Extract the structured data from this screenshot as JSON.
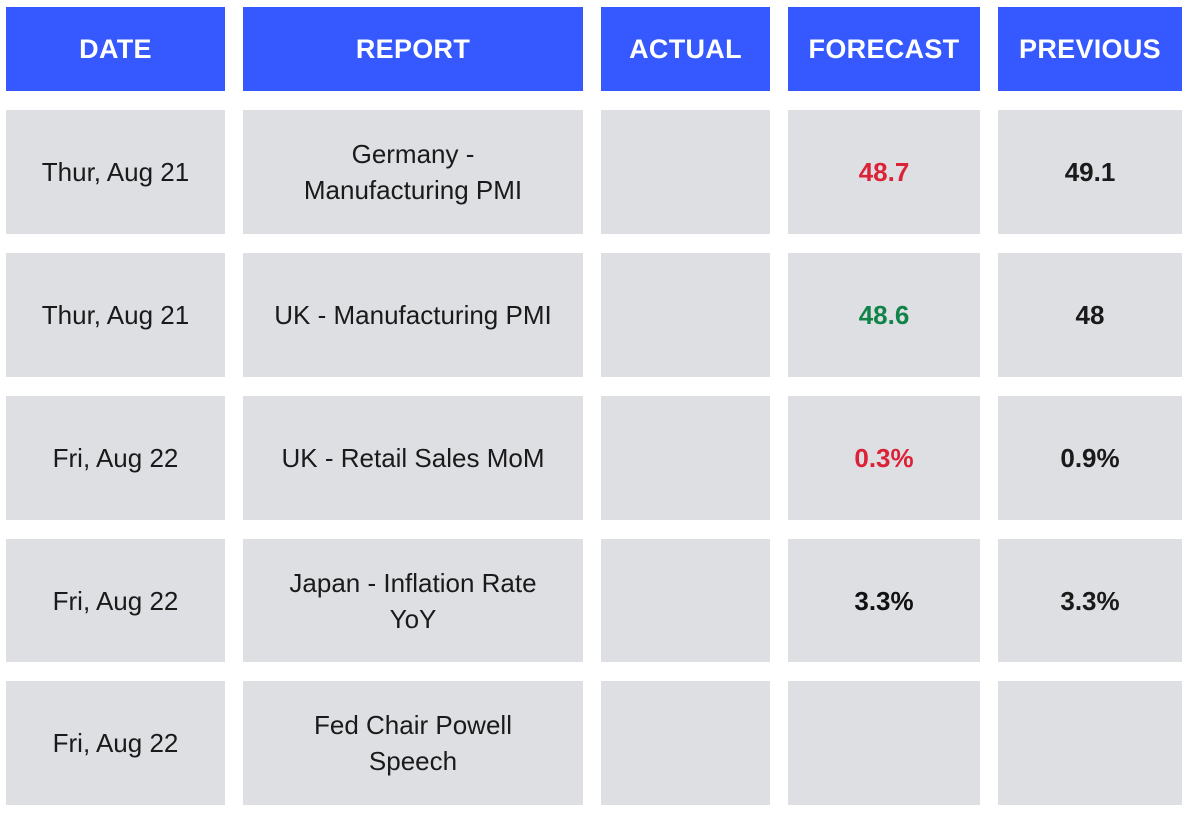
{
  "colors": {
    "header_bg": "#3558ff",
    "cell_bg": "#dedfe3",
    "negative": "#dc2237",
    "positive": "#108348",
    "neutral": "#111111"
  },
  "headers": {
    "date": "DATE",
    "report": "REPORT",
    "actual": "ACTUAL",
    "forecast": "FORECAST",
    "previous": "PREVIOUS"
  },
  "rows": [
    {
      "date": "Thur, Aug 21",
      "report_line1": "Germany -",
      "report_line2": "Manufacturing PMI",
      "actual": "",
      "forecast": "48.7",
      "forecast_trend": "negative",
      "previous": "49.1"
    },
    {
      "date": "Thur, Aug 21",
      "report_line1": "UK - Manufacturing PMI",
      "report_line2": "",
      "actual": "",
      "forecast": "48.6",
      "forecast_trend": "positive",
      "previous": "48"
    },
    {
      "date": "Fri, Aug 22",
      "report_line1": "UK - Retail Sales MoM",
      "report_line2": "",
      "actual": "",
      "forecast": "0.3%",
      "forecast_trend": "negative",
      "previous": "0.9%"
    },
    {
      "date": "Fri, Aug 22",
      "report_line1": "Japan - Inflation Rate",
      "report_line2": "YoY",
      "actual": "",
      "forecast": "3.3%",
      "forecast_trend": "neutral",
      "previous": "3.3%"
    },
    {
      "date": "Fri, Aug 22",
      "report_line1": "Fed Chair Powell",
      "report_line2": "Speech",
      "actual": "",
      "forecast": "",
      "forecast_trend": "neutral",
      "previous": ""
    }
  ]
}
